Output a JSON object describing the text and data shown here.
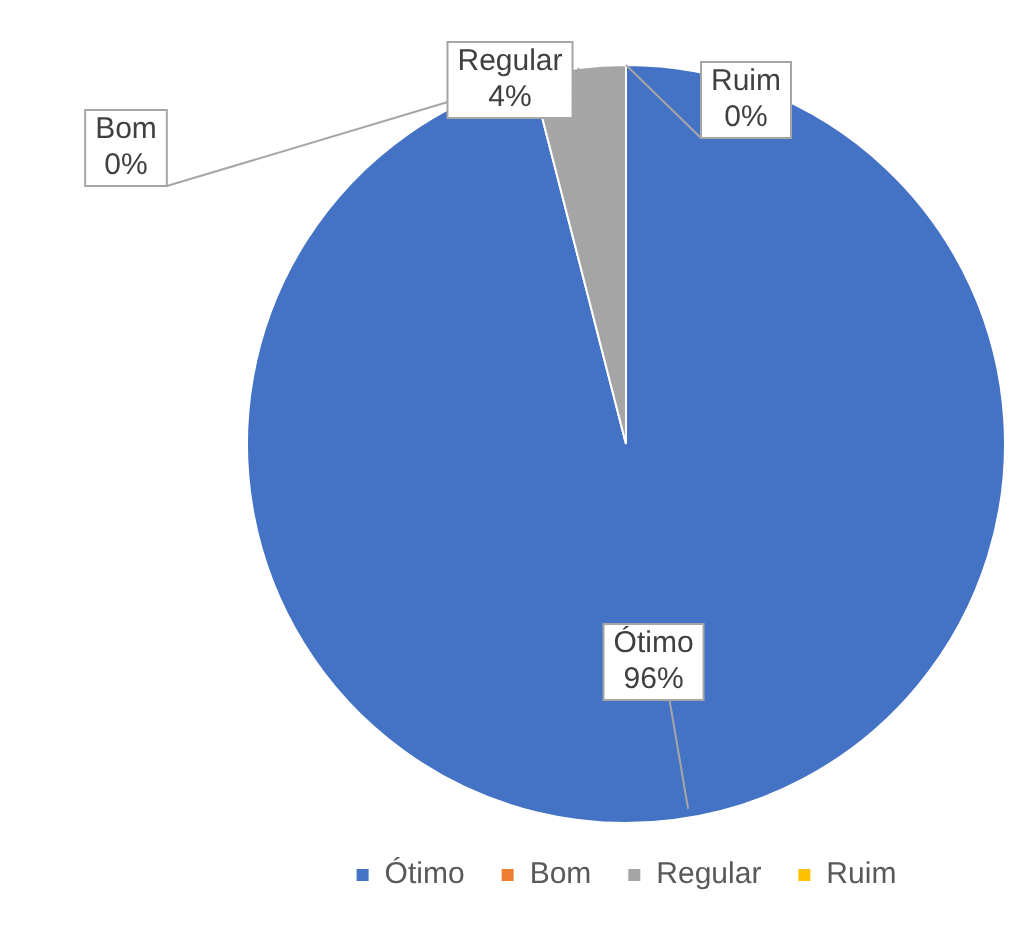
{
  "chart_data": {
    "type": "pie",
    "categories": [
      "Ótimo",
      "Bom",
      "Regular",
      "Ruim"
    ],
    "values": [
      96,
      0,
      4,
      0
    ],
    "value_labels": [
      "96%",
      "0%",
      "4%",
      "0%"
    ],
    "colors": [
      "#4472c4",
      "#ed7d31",
      "#a5a5a5",
      "#ffc000"
    ],
    "legend": "bottom"
  }
}
